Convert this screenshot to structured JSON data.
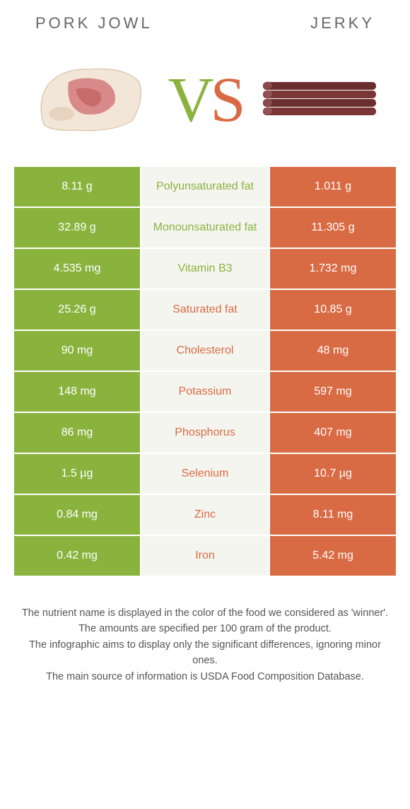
{
  "header": {
    "left_title": "Pork jowl",
    "right_title": "Jerky"
  },
  "vs": {
    "v": "V",
    "s": "S"
  },
  "colors": {
    "left_bg": "#8ab33e",
    "right_bg": "#d96b44",
    "mid_bg": "#f5f5f0",
    "left_text": "#8ab33e",
    "right_text": "#d96b44"
  },
  "rows": [
    {
      "nutrient": "Polyunsaturated fat",
      "left": "8.11 g",
      "right": "1.011 g",
      "winner": "left"
    },
    {
      "nutrient": "Monounsaturated fat",
      "left": "32.89 g",
      "right": "11.305 g",
      "winner": "left"
    },
    {
      "nutrient": "Vitamin B3",
      "left": "4.535 mg",
      "right": "1.732 mg",
      "winner": "left"
    },
    {
      "nutrient": "Saturated fat",
      "left": "25.26 g",
      "right": "10.85 g",
      "winner": "right"
    },
    {
      "nutrient": "Cholesterol",
      "left": "90 mg",
      "right": "48 mg",
      "winner": "right"
    },
    {
      "nutrient": "Potassium",
      "left": "148 mg",
      "right": "597 mg",
      "winner": "right"
    },
    {
      "nutrient": "Phosphorus",
      "left": "86 mg",
      "right": "407 mg",
      "winner": "right"
    },
    {
      "nutrient": "Selenium",
      "left": "1.5 µg",
      "right": "10.7 µg",
      "winner": "right"
    },
    {
      "nutrient": "Zinc",
      "left": "0.84 mg",
      "right": "8.11 mg",
      "winner": "right"
    },
    {
      "nutrient": "Iron",
      "left": "0.42 mg",
      "right": "5.42 mg",
      "winner": "right"
    }
  ],
  "footer": {
    "line1": "The nutrient name is displayed in the color of the food we considered as 'winner'.",
    "line2": "The amounts are specified per 100 gram of the product.",
    "line3": "The infographic aims to display only the significant differences, ignoring minor ones.",
    "line4": "The main source of information is USDA Food Composition Database."
  }
}
